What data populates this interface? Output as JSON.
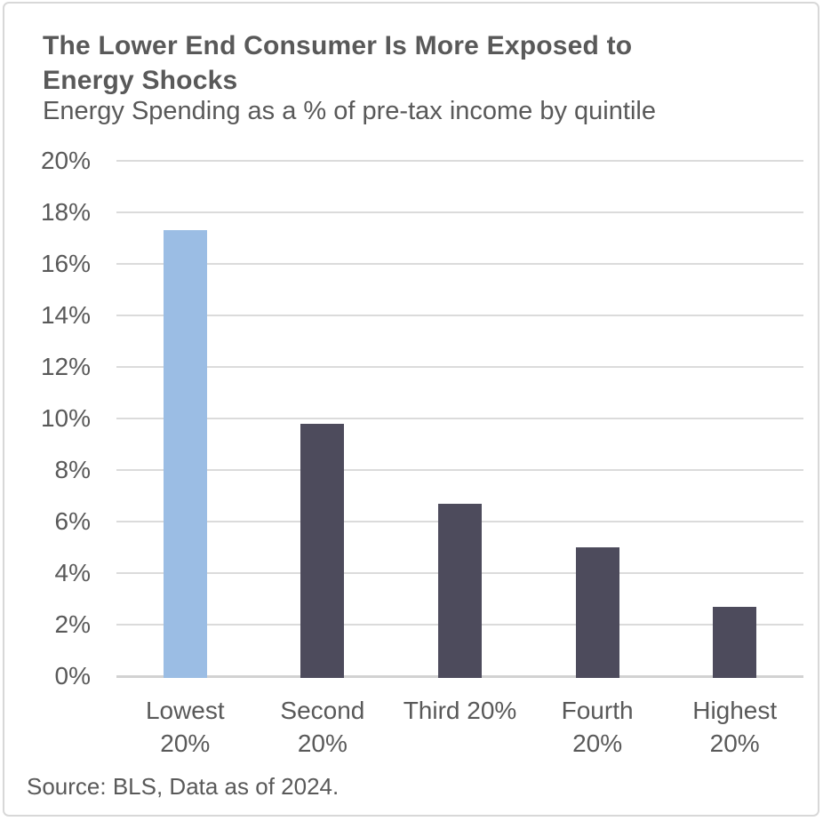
{
  "header": {
    "title_lines": [
      "The Lower End Consumer Is More Exposed to",
      "Energy Shocks"
    ],
    "subtitle": "Energy Spending as a % of pre-tax income by quintile"
  },
  "chart_data": {
    "type": "bar",
    "title": "The Lower End Consumer Is More Exposed to Energy Shocks",
    "subtitle": "Energy Spending as a % of pre-tax income by quintile",
    "categories": [
      "Lowest 20%",
      "Second 20%",
      "Third 20%",
      "Fourth 20%",
      "Highest 20%"
    ],
    "category_lines": [
      [
        "Lowest",
        "20%"
      ],
      [
        "Second",
        "20%"
      ],
      [
        "Third 20%"
      ],
      [
        "Fourth",
        "20%"
      ],
      [
        "Highest",
        "20%"
      ]
    ],
    "values": [
      17.3,
      9.8,
      6.7,
      5.0,
      2.7
    ],
    "unit": "%",
    "xlabel": "",
    "ylabel": "",
    "ylim": [
      0,
      20
    ],
    "ytick_values": [
      20,
      18,
      16,
      14,
      12,
      10,
      8,
      6,
      4,
      2,
      0
    ],
    "ytick_labels": [
      "20%",
      "18%",
      "16%",
      "14%",
      "12%",
      "10%",
      "8%",
      "6%",
      "4%",
      "2%",
      "0%"
    ],
    "grid": "horizontal",
    "legend": "none",
    "highlight_category": "Lowest 20%",
    "bar_colors": [
      "#9BBDE4",
      "#4D4B5C",
      "#4D4B5C",
      "#4D4B5C",
      "#4D4B5C"
    ]
  },
  "footer": {
    "source": "Source: BLS, Data as of 2024."
  },
  "colors": {
    "text": "#595959",
    "gridline": "#DBDBDB",
    "axis_line": "#D2D2D2",
    "border": "#D8D8D8",
    "background": "#FFFFFF",
    "highlight_bar": "#9BBDE4",
    "default_bar": "#4D4B5C"
  }
}
